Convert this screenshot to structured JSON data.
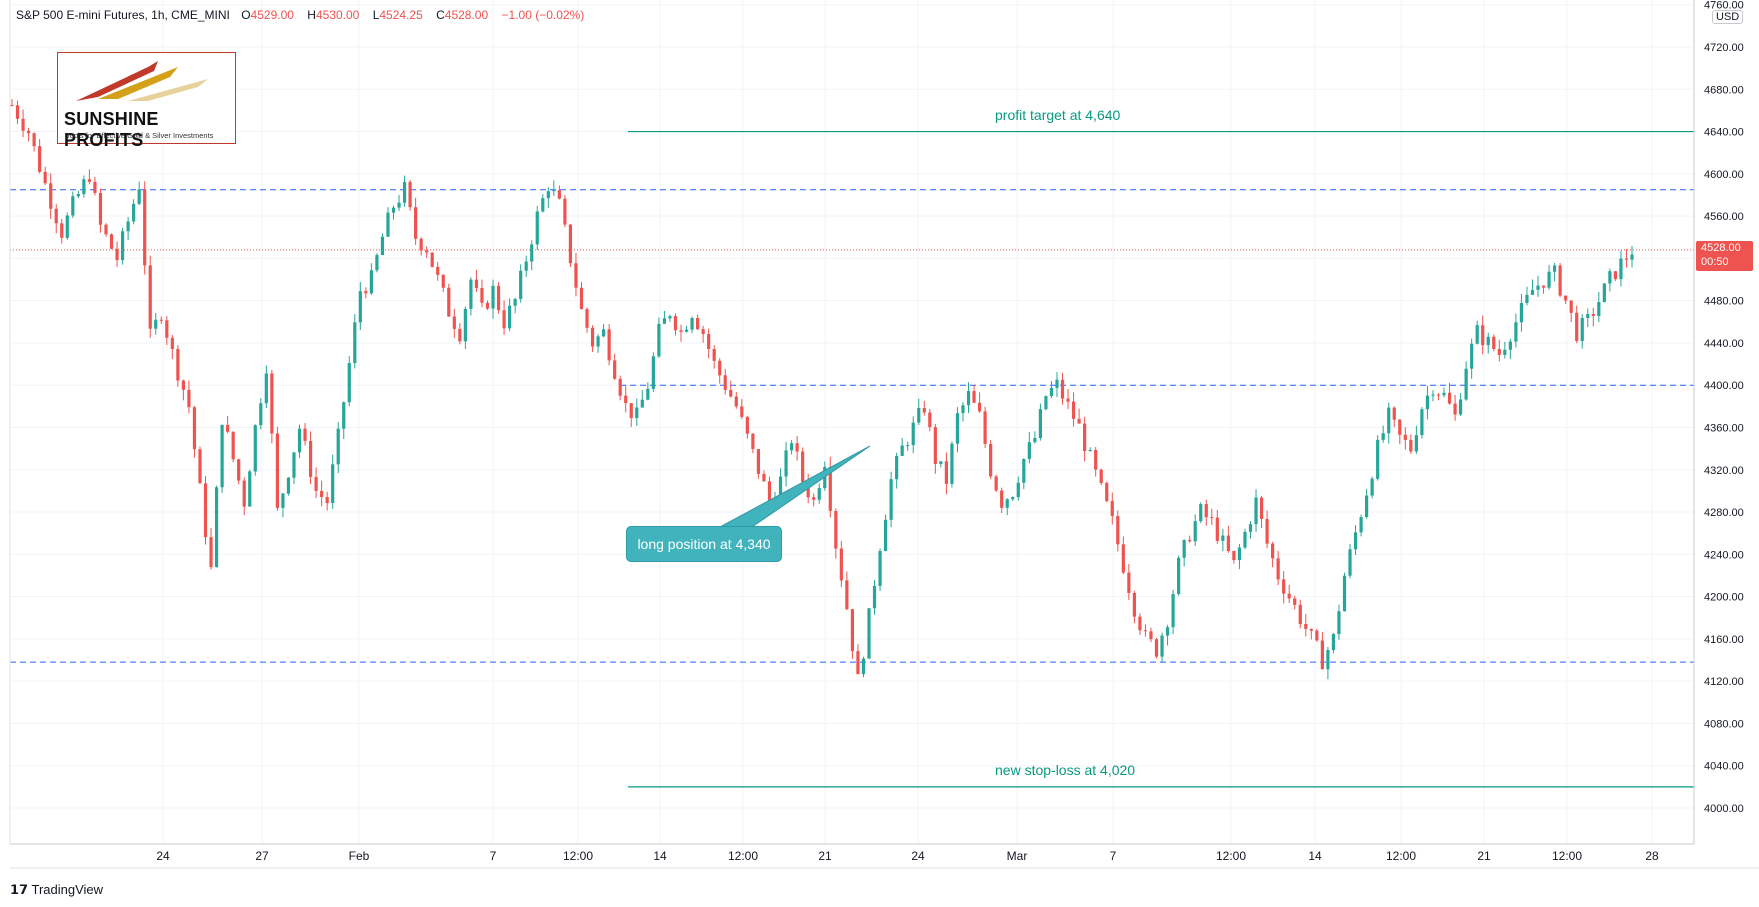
{
  "header": {
    "symbol": "S&P 500 E-mini Futures, 1h, CME_MINI",
    "o_label": "O",
    "o_value": "4529.00",
    "h_label": "H",
    "h_value": "4530.00",
    "l_label": "L",
    "l_value": "4524.25",
    "c_label": "C",
    "c_value": "4528.00",
    "change": "−1.00 (−0.02%)"
  },
  "logo": {
    "name": "SUNSHINE PROFITS",
    "tagline": "Tools for Effective Gold & Silver Investments"
  },
  "footer": {
    "brand": "TradingView"
  },
  "currency": "USD",
  "last_price": {
    "value": "4528.00",
    "countdown": "00:50"
  },
  "colors": {
    "up": "#26a69a",
    "down": "#ef5350",
    "level": "#2962ff",
    "target": "#089981",
    "callout": "#41b3bd"
  },
  "chart_data": {
    "type": "candlestick",
    "ylim": [
      3970,
      4760
    ],
    "y_ticks": [
      4000,
      4040,
      4080,
      4120,
      4160,
      4200,
      4240,
      4280,
      4320,
      4360,
      4400,
      4440,
      4480,
      4520,
      4560,
      4600,
      4640,
      4680,
      4720,
      4760
    ],
    "y_tick_labels": [
      "4000.00",
      "4040.00",
      "4080.00",
      "4120.00",
      "4160.00",
      "4200.00",
      "4240.00",
      "4280.00",
      "4320.00",
      "4360.00",
      "4400.00",
      "4440.00",
      "4480.00",
      "4520.00",
      "4560.00",
      "4600.00",
      "4640.00",
      "4680.00",
      "4720.00",
      "4760.00"
    ],
    "x_ticks": [
      "24",
      "27",
      "Feb",
      "7",
      "12:00",
      "14",
      "12:00",
      "21",
      "24",
      "Mar",
      "7",
      "12:00",
      "14",
      "12:00",
      "21",
      "12:00",
      "28"
    ],
    "horizontal_levels": [
      {
        "value": 4585,
        "style": "dashed"
      },
      {
        "value": 4400,
        "style": "dashed"
      },
      {
        "value": 4138,
        "style": "dashed"
      }
    ],
    "annotations": [
      {
        "text": "profit target at 4,640",
        "value": 4640
      },
      {
        "text": "new stop-loss at 4,020",
        "value": 4020
      },
      {
        "text": "long position at 4,340",
        "value": 4340
      }
    ],
    "price_path": [
      [
        0,
        4665
      ],
      [
        3,
        4640
      ],
      [
        6,
        4590
      ],
      [
        9,
        4545
      ],
      [
        11,
        4570
      ],
      [
        14,
        4600
      ],
      [
        16,
        4550
      ],
      [
        19,
        4520
      ],
      [
        21,
        4555
      ],
      [
        23,
        4590
      ],
      [
        25,
        4445
      ],
      [
        27,
        4470
      ],
      [
        29,
        4430
      ],
      [
        32,
        4380
      ],
      [
        34,
        4300
      ],
      [
        36,
        4225
      ],
      [
        38,
        4370
      ],
      [
        40,
        4330
      ],
      [
        42,
        4290
      ],
      [
        44,
        4360
      ],
      [
        46,
        4420
      ],
      [
        48,
        4280
      ],
      [
        50,
        4320
      ],
      [
        52,
        4360
      ],
      [
        55,
        4300
      ],
      [
        57,
        4290
      ],
      [
        59,
        4350
      ],
      [
        61,
        4420
      ],
      [
        63,
        4490
      ],
      [
        65,
        4500
      ],
      [
        67,
        4540
      ],
      [
        69,
        4570
      ],
      [
        71,
        4585
      ],
      [
        73,
        4540
      ],
      [
        75,
        4530
      ],
      [
        77,
        4500
      ],
      [
        79,
        4470
      ],
      [
        81,
        4450
      ],
      [
        83,
        4500
      ],
      [
        85,
        4470
      ],
      [
        87,
        4490
      ],
      [
        89,
        4460
      ],
      [
        91,
        4480
      ],
      [
        93,
        4520
      ],
      [
        95,
        4560
      ],
      [
        97,
        4590
      ],
      [
        99,
        4570
      ],
      [
        101,
        4520
      ],
      [
        103,
        4470
      ],
      [
        105,
        4440
      ],
      [
        107,
        4450
      ],
      [
        109,
        4415
      ],
      [
        111,
        4380
      ],
      [
        113,
        4370
      ],
      [
        115,
        4400
      ],
      [
        117,
        4450
      ],
      [
        119,
        4470
      ],
      [
        121,
        4450
      ],
      [
        123,
        4470
      ],
      [
        125,
        4450
      ],
      [
        127,
        4420
      ],
      [
        129,
        4400
      ],
      [
        131,
        4380
      ],
      [
        133,
        4350
      ],
      [
        135,
        4320
      ],
      [
        137,
        4290
      ],
      [
        139,
        4310
      ],
      [
        141,
        4350
      ],
      [
        143,
        4310
      ],
      [
        145,
        4290
      ],
      [
        147,
        4330
      ],
      [
        149,
        4250
      ],
      [
        151,
        4190
      ],
      [
        153,
        4120
      ],
      [
        155,
        4180
      ],
      [
        157,
        4250
      ],
      [
        159,
        4310
      ],
      [
        161,
        4340
      ],
      [
        163,
        4360
      ],
      [
        165,
        4380
      ],
      [
        167,
        4330
      ],
      [
        169,
        4310
      ],
      [
        171,
        4370
      ],
      [
        173,
        4390
      ],
      [
        175,
        4370
      ],
      [
        177,
        4320
      ],
      [
        179,
        4290
      ],
      [
        181,
        4300
      ],
      [
        183,
        4330
      ],
      [
        185,
        4350
      ],
      [
        187,
        4390
      ],
      [
        189,
        4400
      ],
      [
        191,
        4380
      ],
      [
        193,
        4360
      ],
      [
        195,
        4330
      ],
      [
        197,
        4300
      ],
      [
        199,
        4270
      ],
      [
        201,
        4230
      ],
      [
        203,
        4190
      ],
      [
        205,
        4160
      ],
      [
        207,
        4150
      ],
      [
        209,
        4180
      ],
      [
        211,
        4230
      ],
      [
        213,
        4260
      ],
      [
        215,
        4280
      ],
      [
        217,
        4270
      ],
      [
        219,
        4250
      ],
      [
        221,
        4230
      ],
      [
        223,
        4260
      ],
      [
        225,
        4290
      ],
      [
        227,
        4250
      ],
      [
        229,
        4220
      ],
      [
        231,
        4200
      ],
      [
        233,
        4180
      ],
      [
        235,
        4160
      ],
      [
        237,
        4140
      ],
      [
        239,
        4160
      ],
      [
        241,
        4220
      ],
      [
        243,
        4260
      ],
      [
        245,
        4300
      ],
      [
        247,
        4340
      ],
      [
        249,
        4370
      ],
      [
        251,
        4350
      ],
      [
        253,
        4340
      ],
      [
        255,
        4380
      ],
      [
        257,
        4400
      ],
      [
        259,
        4390
      ],
      [
        261,
        4370
      ],
      [
        263,
        4420
      ],
      [
        265,
        4450
      ],
      [
        267,
        4440
      ],
      [
        269,
        4430
      ],
      [
        271,
        4450
      ],
      [
        273,
        4470
      ],
      [
        275,
        4490
      ],
      [
        277,
        4500
      ],
      [
        279,
        4505
      ],
      [
        281,
        4480
      ],
      [
        283,
        4450
      ],
      [
        285,
        4460
      ],
      [
        287,
        4480
      ],
      [
        289,
        4500
      ],
      [
        291,
        4515
      ],
      [
        293,
        4528
      ]
    ]
  }
}
